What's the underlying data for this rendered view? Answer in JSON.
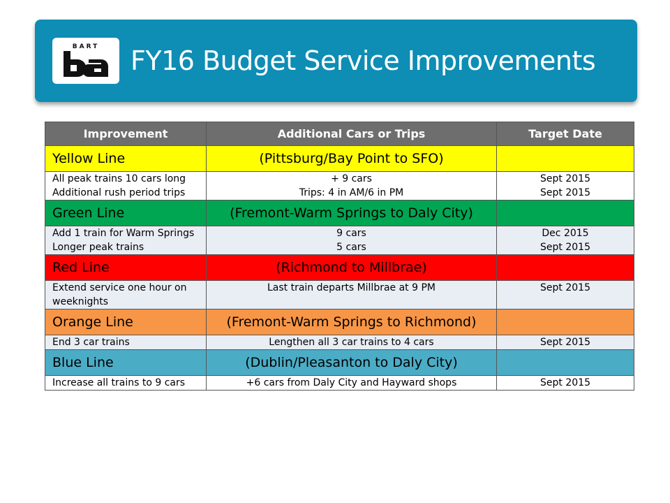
{
  "header": {
    "logo_text": "BART",
    "title": "FY16 Budget Service Improvements",
    "banner_color": "#0e8db5"
  },
  "table": {
    "columns": [
      "Improvement",
      "Additional Cars or Trips",
      "Target Date"
    ],
    "sections": [
      {
        "line": "Yellow Line",
        "route": "(Pittsburg/Bay Point to SFO)",
        "color": "#ffff00",
        "text_color": "#000000",
        "improvements": [
          "All peak trains 10 cars long",
          "Additional rush period trips"
        ],
        "additions": [
          "+ 9 cars",
          "Trips: 4 in AM/6 in PM"
        ],
        "dates": [
          "Sept 2015",
          "Sept 2015"
        ]
      },
      {
        "line": "Green Line",
        "route": "(Fremont-Warm Springs to Daly City)",
        "color": "#00a651",
        "text_color": "#000000",
        "improvements": [
          "Add 1 train for Warm Springs",
          "Longer peak trains"
        ],
        "additions": [
          "9 cars",
          "5 cars"
        ],
        "dates": [
          "Dec 2015",
          "Sept 2015"
        ]
      },
      {
        "line": "Red Line",
        "route": "(Richmond to Millbrae)",
        "color": "#ff0000",
        "text_color": "#000000",
        "improvements": [
          "Extend service one hour on",
          "weeknights"
        ],
        "additions": [
          "Last train departs Millbrae at 9 PM"
        ],
        "dates": [
          "Sept 2015"
        ]
      },
      {
        "line": "Orange Line",
        "route": "(Fremont-Warm Springs to Richmond)",
        "color": "#f79646",
        "text_color": "#000000",
        "improvements": [
          "End 3 car trains"
        ],
        "additions": [
          "Lengthen all 3 car trains to 4 cars"
        ],
        "dates": [
          "Sept 2015"
        ]
      },
      {
        "line": "Blue Line",
        "route": "(Dublin/Pleasanton to Daly City)",
        "color": "#4bacc6",
        "text_color": "#000000",
        "improvements": [
          "Increase all trains to 9 cars"
        ],
        "additions": [
          "+6 cars from Daly City and Hayward shops"
        ],
        "dates": [
          "Sept 2015"
        ]
      }
    ]
  }
}
